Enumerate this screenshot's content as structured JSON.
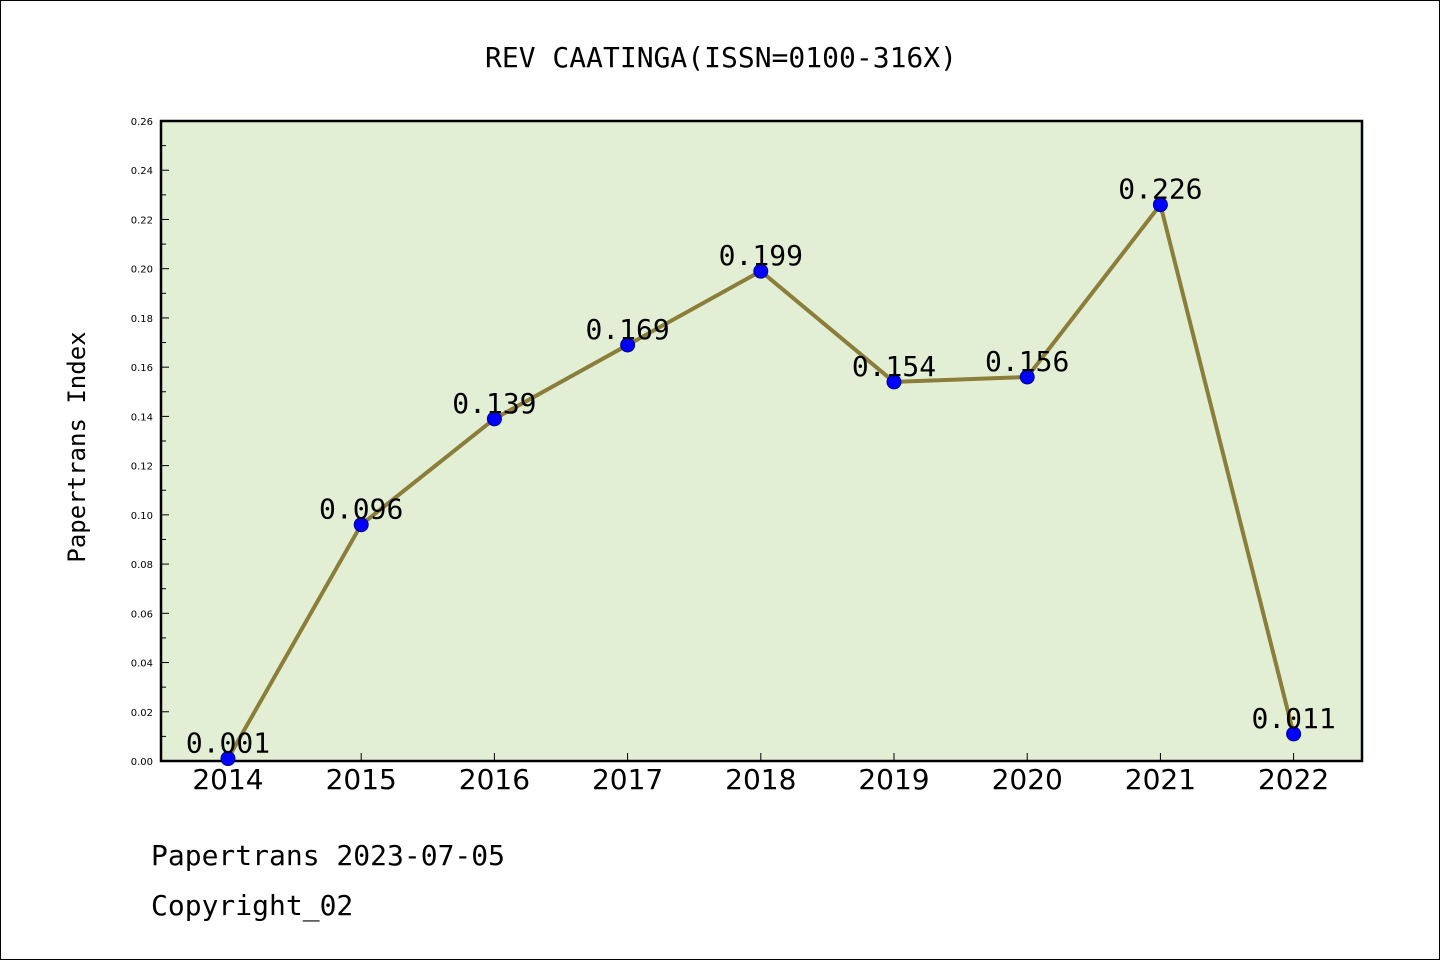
{
  "chart_data": {
    "type": "line",
    "title": "REV CAATINGA(ISSN=0100-316X)",
    "xlabel": "",
    "ylabel": "Papertrans Index",
    "x": [
      "2014",
      "2015",
      "2016",
      "2017",
      "2018",
      "2019",
      "2020",
      "2021",
      "2022"
    ],
    "series": [
      {
        "values": [
          0.001,
          0.096,
          0.139,
          0.169,
          0.199,
          0.154,
          0.156,
          0.226,
          0.011
        ],
        "labels": [
          "0.001",
          "0.096",
          "0.139",
          "0.169",
          "0.199",
          "0.154",
          "0.156",
          "0.226",
          "0.011"
        ]
      }
    ],
    "yticks": [
      "0.00",
      "0.02",
      "0.04",
      "0.06",
      "0.08",
      "0.10",
      "0.12",
      "0.14",
      "0.16",
      "0.18",
      "0.20",
      "0.22",
      "0.24",
      "0.26"
    ],
    "ylim": [
      0,
      0.26
    ],
    "grid": false,
    "colors": {
      "plot_background": "#e2efd4",
      "line": "#8b7d3a",
      "marker": "#0000ff",
      "marker_edge": "#00008b"
    }
  },
  "footer": {
    "date_line": "Papertrans 2023-07-05",
    "copyright": "Copyright_02"
  }
}
